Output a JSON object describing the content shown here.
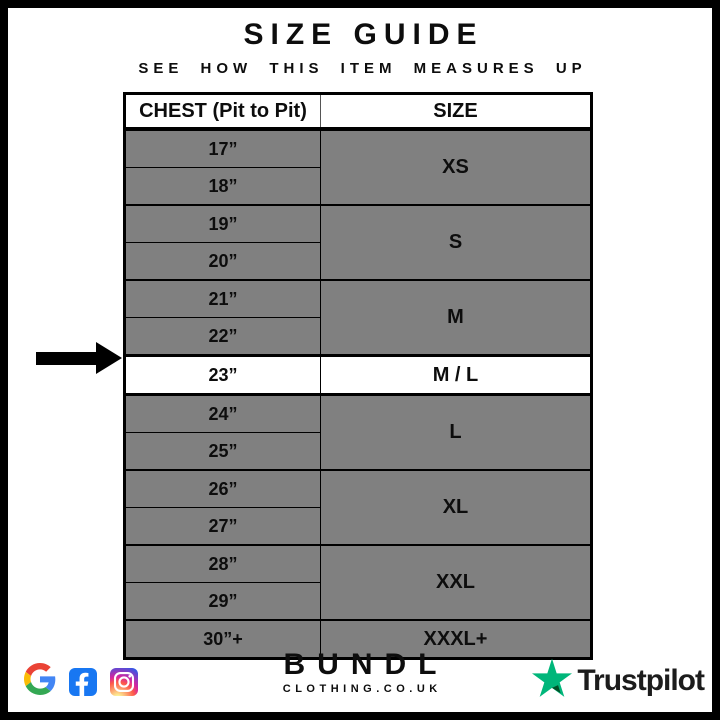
{
  "page": {
    "title": "SIZE GUIDE",
    "subtitle": "SEE HOW THIS ITEM MEASURES UP"
  },
  "chart_data": {
    "type": "table",
    "title": "SIZE GUIDE",
    "subtitle": "SEE HOW THIS ITEM MEASURES UP",
    "columns": [
      "CHEST (Pit to Pit)",
      "SIZE"
    ],
    "rows": [
      [
        "17”",
        "XS"
      ],
      [
        "18”",
        "XS"
      ],
      [
        "19”",
        "S"
      ],
      [
        "20”",
        "S"
      ],
      [
        "21”",
        "M"
      ],
      [
        "22”",
        "M"
      ],
      [
        "23”",
        "M / L"
      ],
      [
        "24”",
        "L"
      ],
      [
        "25”",
        "L"
      ],
      [
        "26”",
        "XL"
      ],
      [
        "27”",
        "XL"
      ],
      [
        "28”",
        "XXL"
      ],
      [
        "29”",
        "XXL"
      ],
      [
        "30”+",
        "XXXL+"
      ]
    ],
    "highlighted_row": [
      "23”",
      "M / L"
    ]
  },
  "table": {
    "headers": {
      "chest": "CHEST (Pit to Pit)",
      "size": "SIZE"
    },
    "groups": [
      {
        "size": "XS",
        "chest": [
          "17”",
          "18”"
        ]
      },
      {
        "size": "S",
        "chest": [
          "19”",
          "20”"
        ]
      },
      {
        "size": "M",
        "chest": [
          "21”",
          "22”"
        ]
      },
      {
        "size": "M / L",
        "chest": [
          "23”"
        ],
        "highlighted": true
      },
      {
        "size": "L",
        "chest": [
          "24”",
          "25”"
        ]
      },
      {
        "size": "XL",
        "chest": [
          "26”",
          "27”"
        ]
      },
      {
        "size": "XXL",
        "chest": [
          "28”",
          "29”"
        ]
      },
      {
        "size": "XXXL+",
        "chest": [
          "30”+"
        ]
      }
    ]
  },
  "footer": {
    "brand": {
      "name": "BUNDL",
      "domain": "CLOTHING.CO.UK"
    },
    "trustpilot": {
      "label": "Trustpilot"
    }
  },
  "colors": {
    "row_gray": "#808080",
    "highlight_white": "#ffffff",
    "border_black": "#000000",
    "trustpilot_green": "#00B67A",
    "trustpilot_dark_green": "#005128",
    "facebook_blue": "#1877F2"
  }
}
